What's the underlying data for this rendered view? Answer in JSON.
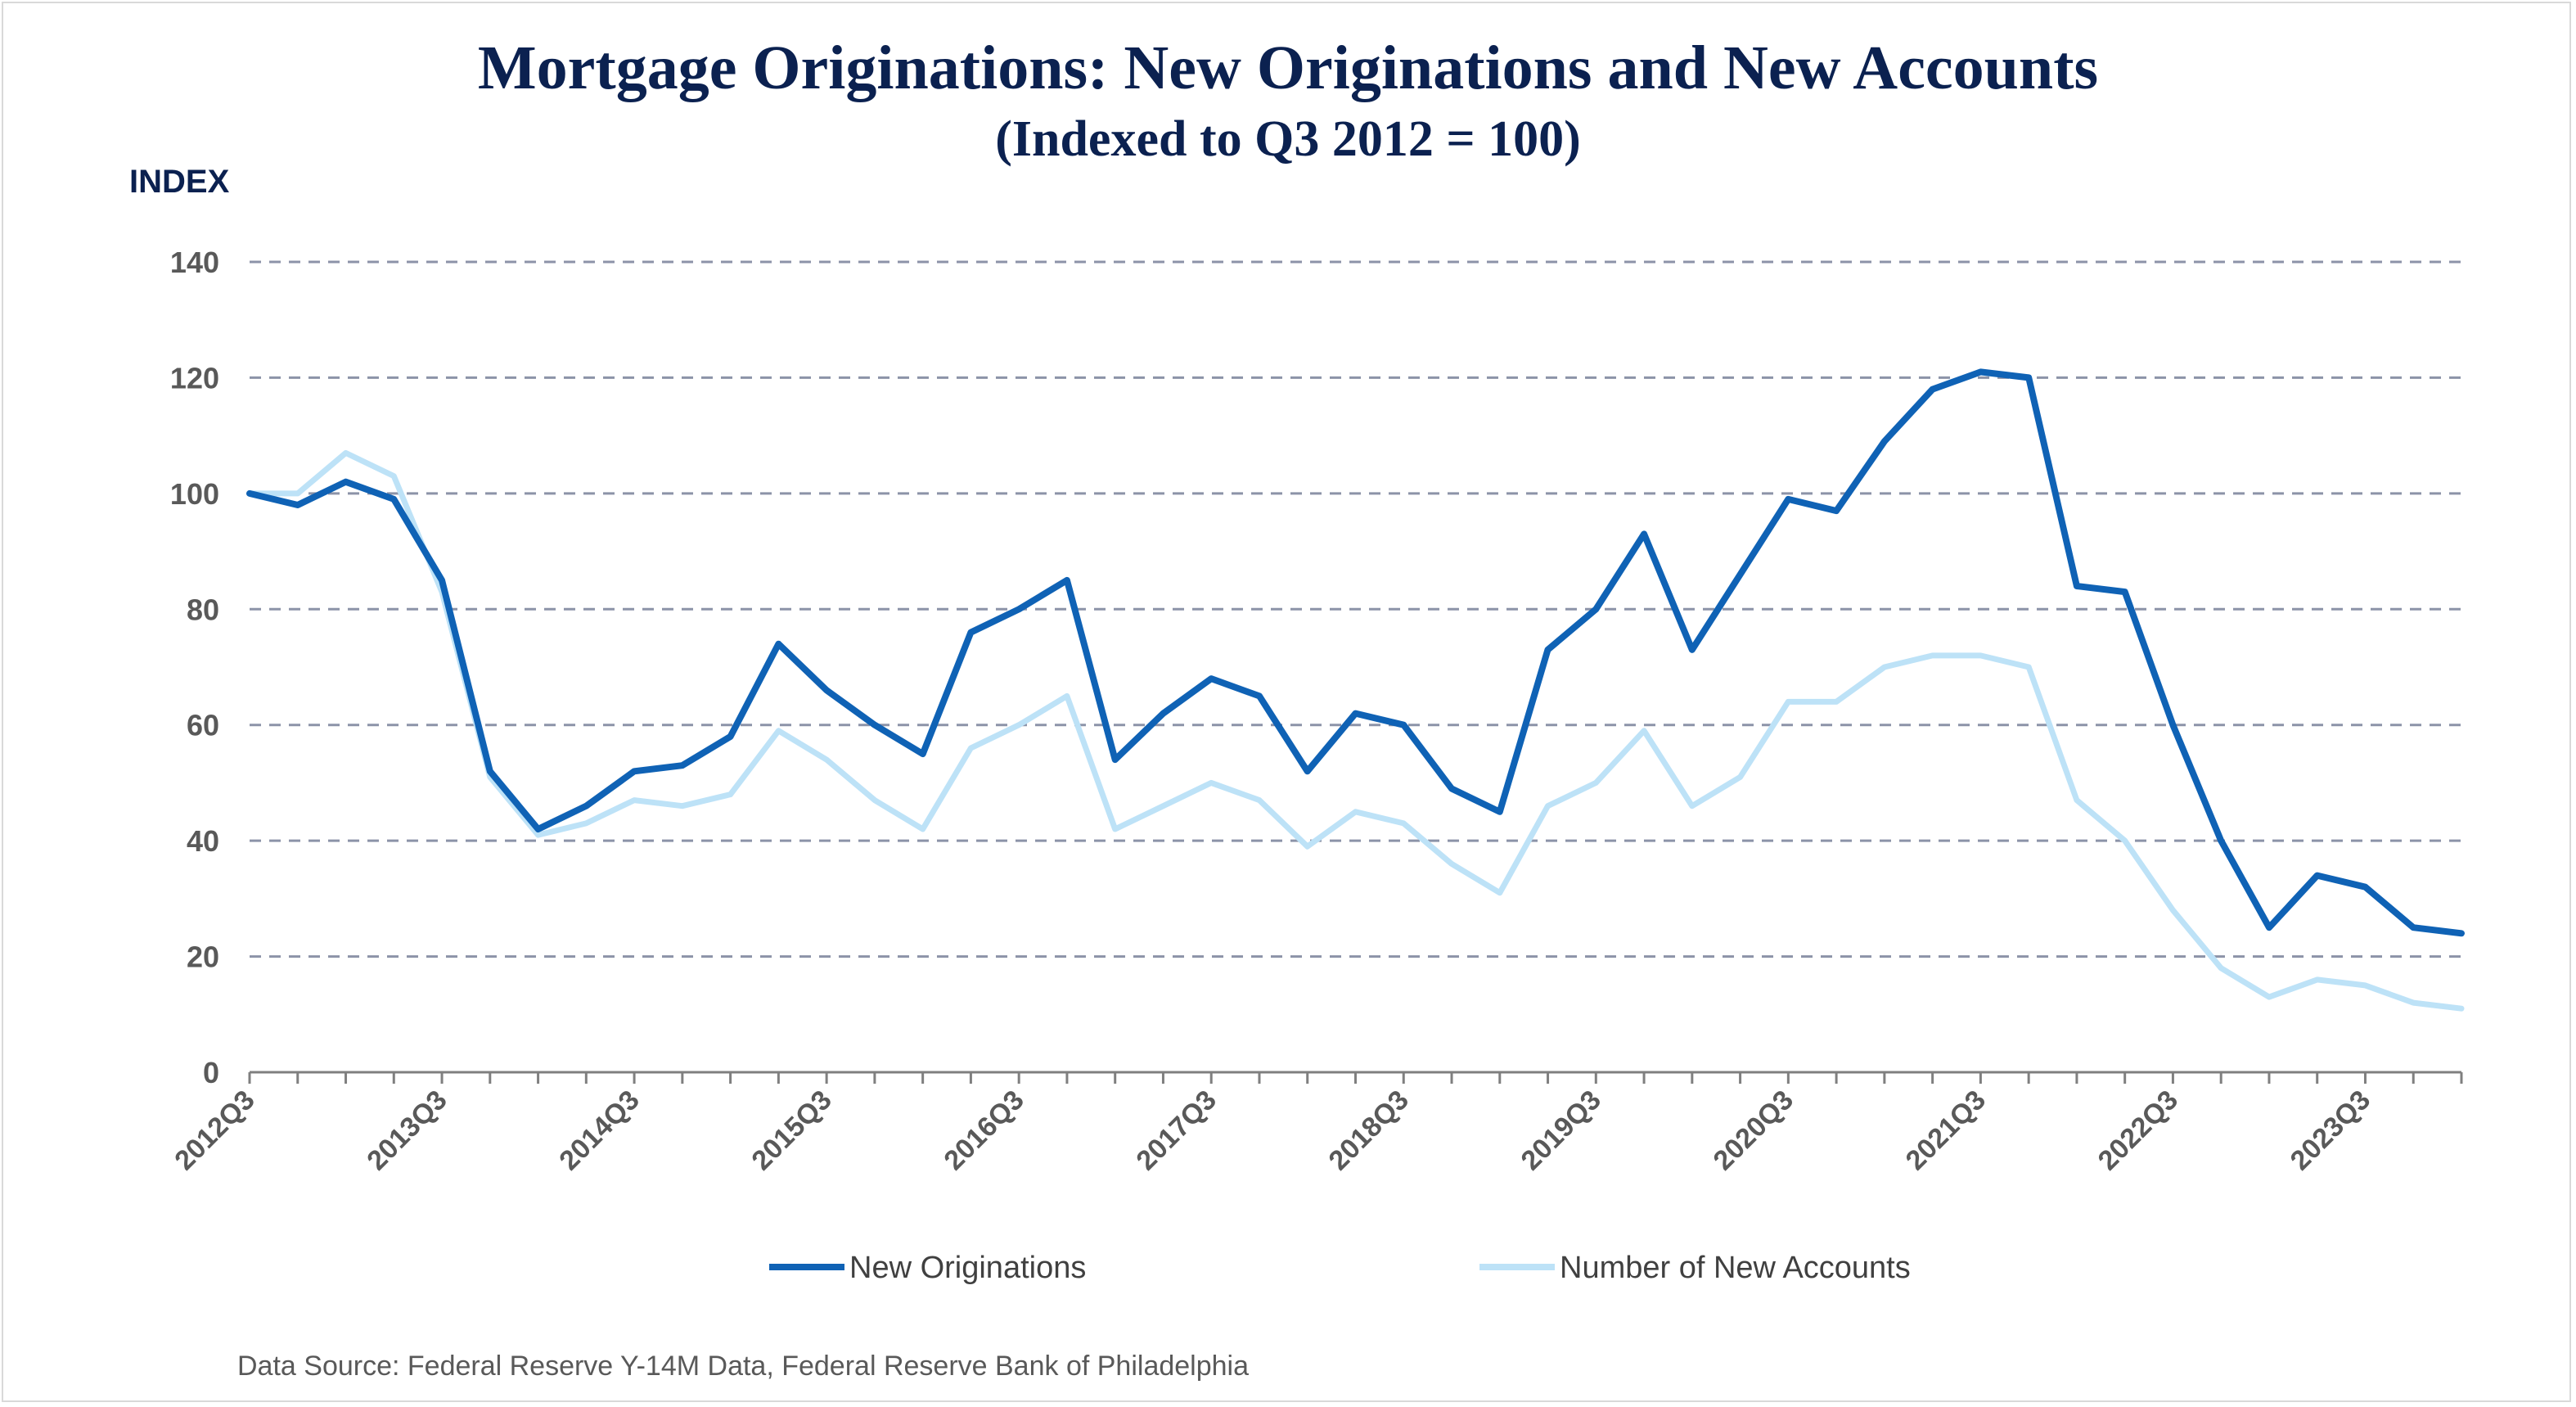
{
  "chart_data": {
    "type": "line",
    "title": "Mortgage Originations: New Originations and New Accounts",
    "subtitle": "(Indexed to Q3 2012 = 100)",
    "ylabel": "INDEX",
    "xlabel": "",
    "ylim": [
      0,
      140
    ],
    "yticks": [
      0,
      20,
      40,
      60,
      80,
      100,
      120,
      140
    ],
    "grid": true,
    "legend_position": "bottom",
    "x": [
      "2012Q3",
      "2012Q4",
      "2013Q1",
      "2013Q2",
      "2013Q3",
      "2013Q4",
      "2014Q1",
      "2014Q2",
      "2014Q3",
      "2014Q4",
      "2015Q1",
      "2015Q2",
      "2015Q3",
      "2015Q4",
      "2016Q1",
      "2016Q2",
      "2016Q3",
      "2016Q4",
      "2017Q1",
      "2017Q2",
      "2017Q3",
      "2017Q4",
      "2018Q1",
      "2018Q2",
      "2018Q3",
      "2018Q4",
      "2019Q1",
      "2019Q2",
      "2019Q3",
      "2019Q4",
      "2020Q1",
      "2020Q2",
      "2020Q3",
      "2020Q4",
      "2021Q1",
      "2021Q2",
      "2021Q3",
      "2021Q4",
      "2022Q1",
      "2022Q2",
      "2022Q3",
      "2022Q4",
      "2023Q1",
      "2023Q2",
      "2023Q3",
      "2023Q4",
      "2024Q1"
    ],
    "x_tick_labels": [
      "2012Q3",
      "2013Q3",
      "2014Q3",
      "2015Q3",
      "2016Q3",
      "2017Q3",
      "2018Q3",
      "2019Q3",
      "2020Q3",
      "2021Q3",
      "2022Q3",
      "2023Q3"
    ],
    "series": [
      {
        "name": "New Originations",
        "color": "#0f62b5",
        "values": [
          100,
          98,
          102,
          99,
          85,
          52,
          42,
          46,
          52,
          53,
          58,
          74,
          66,
          60,
          55,
          76,
          80,
          85,
          54,
          62,
          68,
          65,
          52,
          62,
          60,
          49,
          45,
          73,
          80,
          93,
          73,
          86,
          99,
          97,
          109,
          118,
          121,
          120,
          84,
          83,
          60,
          40,
          25,
          34,
          32,
          25,
          24
        ]
      },
      {
        "name": "Number of New Accounts",
        "color": "#bde2f7",
        "values": [
          100,
          100,
          107,
          103,
          83,
          51,
          41,
          43,
          47,
          46,
          48,
          59,
          54,
          47,
          42,
          56,
          60,
          65,
          42,
          46,
          50,
          47,
          39,
          45,
          43,
          36,
          31,
          46,
          50,
          59,
          46,
          51,
          64,
          64,
          70,
          72,
          72,
          70,
          47,
          40,
          28,
          18,
          13,
          16,
          15,
          12,
          11
        ]
      }
    ]
  },
  "source_note": "Data Source: Federal Reserve Y-14M Data, Federal Reserve Bank of Philadelphia"
}
